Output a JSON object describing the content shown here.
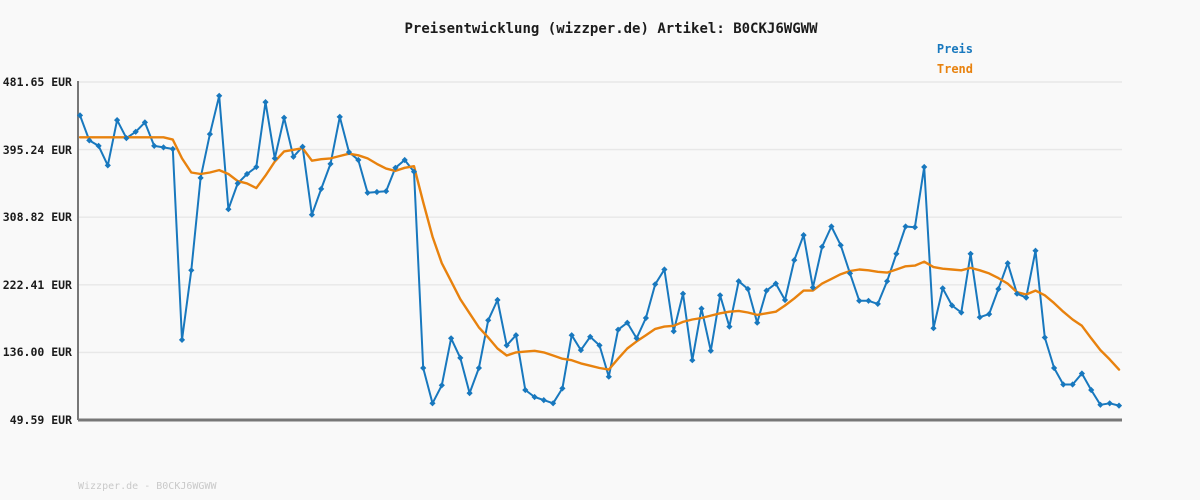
{
  "title": "Preisentwicklung (wizzper.de) Artikel: B0CKJ6WGWW",
  "legend": {
    "preis": "Preis",
    "trend": "Trend"
  },
  "footer": "Wizzper.de - B0CKJ6WGWW",
  "colors": {
    "preis": "#1878be",
    "trend": "#e8820e",
    "grid": "#e8e8e8",
    "axis": "#777777",
    "background": "#f9f9f9",
    "tick_text": "#1b1b1b",
    "footer_text": "#c9c9c9"
  },
  "chart_data": {
    "type": "line",
    "title": "Preisentwicklung (wizzper.de) Artikel: B0CKJ6WGWW",
    "unit": "EUR",
    "ylim": [
      49.59,
      481.65
    ],
    "y_ticks": [
      "481.65 EUR",
      "395.24 EUR",
      "308.82 EUR",
      "222.41 EUR",
      "136.00 EUR",
      "49.59 EUR"
    ],
    "y_tick_values": [
      481.65,
      395.24,
      308.82,
      222.41,
      136.0,
      49.59
    ],
    "grid": "horizontal",
    "legend_position": "top-right",
    "x_axis_labels_visible": false,
    "series": [
      {
        "name": "Preis",
        "color": "#1878be",
        "marker": "diamond",
        "values": [
          439,
          407,
          400,
          375,
          433,
          410,
          418,
          430,
          400,
          398,
          396,
          152,
          241,
          359,
          415,
          464,
          319,
          352,
          364,
          373,
          456,
          384,
          436,
          386,
          399,
          312,
          345,
          377,
          437,
          392,
          382,
          340,
          341,
          342,
          372,
          382,
          367,
          116,
          71,
          94,
          154,
          129,
          84,
          116,
          177,
          203,
          145,
          158,
          88,
          79,
          75,
          71,
          90,
          158,
          139,
          156,
          145,
          105,
          165,
          174,
          154,
          180,
          223,
          242,
          163,
          211,
          126,
          192,
          138,
          209,
          169,
          227,
          217,
          174,
          215,
          224,
          203,
          254,
          286,
          219,
          271,
          297,
          273,
          237,
          202,
          202,
          198,
          227,
          262,
          297,
          296,
          373,
          167,
          218,
          196,
          187,
          262,
          181,
          185,
          217,
          250,
          211,
          206,
          266,
          155,
          116,
          95,
          95,
          109,
          88,
          69,
          71,
          68
        ]
      },
      {
        "name": "Trend",
        "color": "#e8820e",
        "marker": "none",
        "values": [
          411,
          411,
          411,
          411,
          411,
          411,
          411,
          411,
          411,
          411,
          408,
          384,
          366,
          364,
          366,
          369,
          364,
          355,
          352,
          346,
          362,
          380,
          393,
          395,
          397,
          381,
          383,
          384,
          387,
          390,
          388,
          384,
          377,
          371,
          368,
          372,
          374,
          328,
          284,
          250,
          227,
          204,
          186,
          168,
          155,
          141,
          132,
          136,
          137,
          138,
          136,
          132,
          128,
          126,
          122,
          119,
          116,
          114,
          128,
          141,
          150,
          158,
          166,
          169,
          170,
          175,
          178,
          180,
          183,
          186,
          188,
          189,
          187,
          184,
          186,
          188,
          196,
          205,
          215,
          215,
          224,
          230,
          236,
          240,
          242,
          241,
          239,
          238,
          242,
          246,
          247,
          252,
          245,
          243,
          242,
          241,
          244,
          241,
          237,
          231,
          224,
          213,
          210,
          215,
          209,
          199,
          188,
          178,
          170,
          154,
          139,
          127,
          114
        ]
      }
    ]
  }
}
